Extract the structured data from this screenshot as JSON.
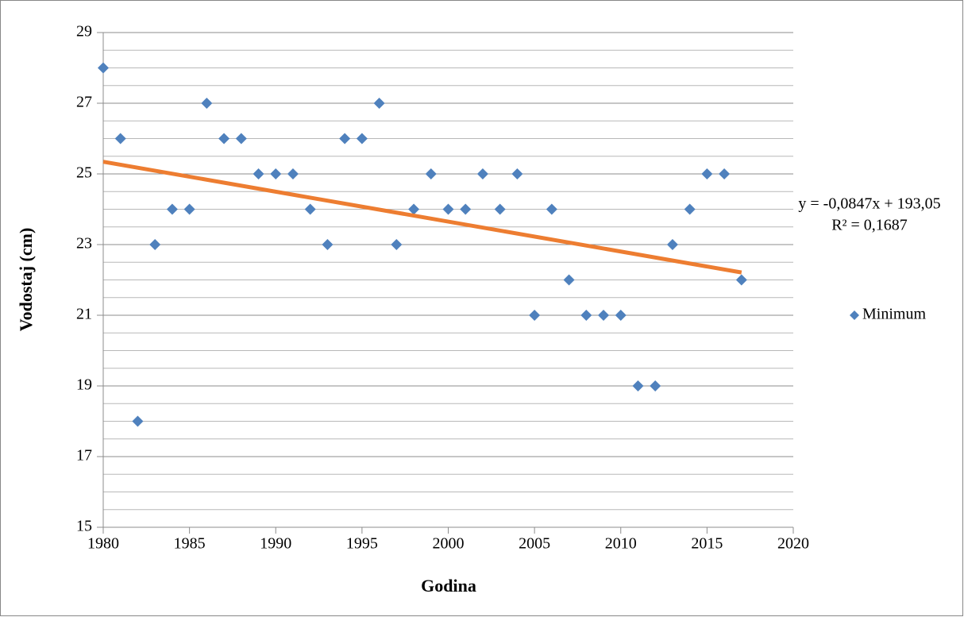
{
  "chart_data": {
    "type": "scatter",
    "x_label": "Godina",
    "y_label": "Vodostaj (cm)",
    "series": [
      {
        "name": "Minimum",
        "color": "#4f81bd",
        "x": [
          1980,
          1981,
          1982,
          1983,
          1984,
          1985,
          1986,
          1987,
          1988,
          1989,
          1990,
          1991,
          1992,
          1993,
          1994,
          1995,
          1996,
          1997,
          1998,
          1999,
          2000,
          2001,
          2002,
          2003,
          2004,
          2005,
          2006,
          2007,
          2008,
          2009,
          2010,
          2011,
          2012,
          2013,
          2014,
          2015,
          2016,
          2017
        ],
        "values": [
          28,
          26,
          18,
          23,
          24,
          24,
          27,
          26,
          26,
          25,
          25,
          25,
          24,
          23,
          26,
          26,
          27,
          23,
          24,
          25,
          24,
          24,
          25,
          24,
          25,
          21,
          24,
          22,
          21,
          21,
          21,
          19,
          19,
          23,
          24,
          25,
          25,
          22
        ]
      }
    ],
    "trendline": {
      "color": "#ed7d31",
      "slope": -0.0847,
      "intercept": 193.05,
      "x": [
        1980,
        2017
      ],
      "equation": "y = -0,0847x + 193,05",
      "r2": 0.1687,
      "r2_label": "R² = 0,1687"
    },
    "xlim": [
      1980,
      2020
    ],
    "xticks": [
      1980,
      1985,
      1990,
      1995,
      2000,
      2005,
      2010,
      2015,
      2020
    ],
    "ylim": [
      15,
      29
    ],
    "yticks": [
      15,
      17,
      19,
      21,
      23,
      25,
      27,
      29
    ],
    "yminor": [
      15.5,
      16,
      16.5,
      17.5,
      18,
      18.5,
      19.5,
      20,
      20.5,
      21.5,
      22,
      22.5,
      23.5,
      24,
      24.5,
      25.5,
      26,
      26.5,
      27.5,
      28,
      28.5
    ],
    "grid": true,
    "legend": "right"
  }
}
